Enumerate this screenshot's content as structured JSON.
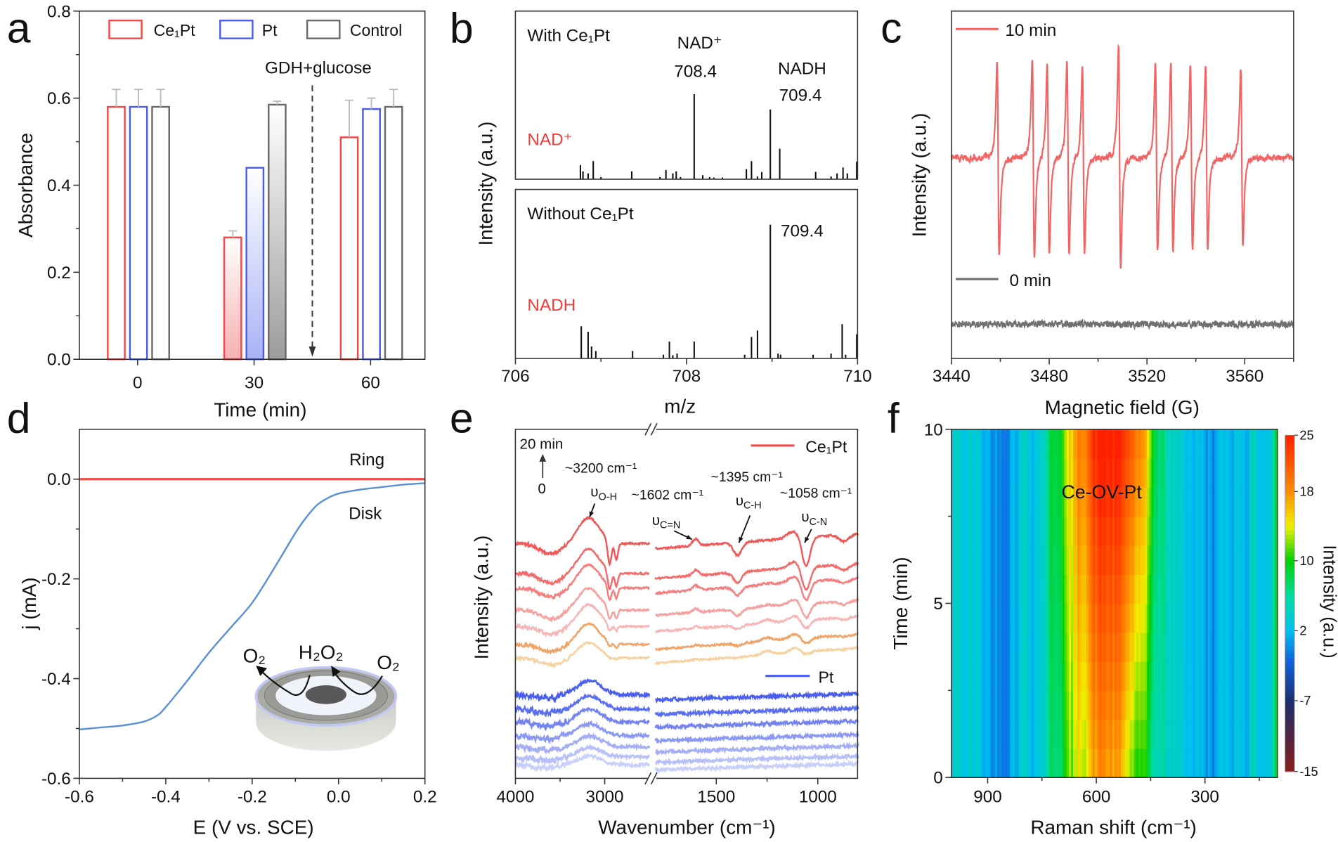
{
  "panel_labels": [
    "a",
    "b",
    "c",
    "d",
    "e",
    "f"
  ],
  "chart_data": [
    {
      "panel": "a",
      "type": "bar",
      "xlabel": "Time (min)",
      "ylabel": "Absorbance",
      "categories": [
        "0",
        "30",
        "60"
      ],
      "category_values": [
        0,
        30,
        60
      ],
      "xlim": [
        -15,
        74
      ],
      "ylim": [
        0,
        0.8
      ],
      "yticks": [
        "0.0",
        "0.2",
        "0.4",
        "0.6",
        "0.8"
      ],
      "series": [
        {
          "name": "Ce₁Pt",
          "color": "#f24848",
          "fill_color": "#f5b0b0",
          "values": [
            0.58,
            0.28,
            0.51
          ],
          "errors": [
            0.04,
            0.015,
            0.085
          ]
        },
        {
          "name": "Pt",
          "color": "#4a5cf0",
          "fill_color": "#a9b3f7",
          "values": [
            0.58,
            0.44,
            0.575
          ],
          "errors": [
            0.04,
            0.0,
            0.025
          ]
        },
        {
          "name": "Control",
          "color": "#6a6a6a",
          "fill_color": "#9c9c9c",
          "values": [
            0.58,
            0.585,
            0.58
          ],
          "errors": [
            0.04,
            0.008,
            0.04
          ]
        }
      ],
      "annotation": {
        "text": "GDH+glucose",
        "x": 45
      },
      "legend_position": "top",
      "error_color": "#bdbdbd"
    },
    {
      "panel": "b",
      "type": "bar",
      "xlabel": "m/z",
      "ylabel": "Intensity (a.u.)",
      "xlim": [
        706,
        710
      ],
      "xticks": [
        "706",
        "708",
        "710"
      ],
      "subplots": [
        {
          "title": "With Ce₁Pt",
          "sample_label": "NAD⁺",
          "annotations": [
            "NAD⁺",
            "708.4",
            "NADH",
            "709.4"
          ],
          "peaks": [
            [
              706.76,
              0.084
            ],
            [
              706.79,
              0.047
            ],
            [
              706.85,
              0.035
            ],
            [
              706.91,
              0.108
            ],
            [
              707.0,
              0.013
            ],
            [
              707.36,
              0.047
            ],
            [
              707.69,
              0.013
            ],
            [
              707.76,
              0.055
            ],
            [
              707.84,
              0.035
            ],
            [
              707.88,
              0.047
            ],
            [
              707.93,
              0.013
            ],
            [
              708.09,
              0.506
            ],
            [
              708.19,
              0.024
            ],
            [
              708.27,
              0.013
            ],
            [
              708.32,
              0.01
            ],
            [
              708.42,
              0.01
            ],
            [
              708.7,
              0.06
            ],
            [
              708.76,
              0.108
            ],
            [
              708.83,
              0.016
            ],
            [
              708.88,
              0.043
            ],
            [
              708.98,
              0.415
            ],
            [
              709.09,
              0.182
            ],
            [
              709.51,
              0.044
            ],
            [
              709.69,
              0.016
            ],
            [
              709.76,
              0.035
            ],
            [
              709.83,
              0.07
            ],
            [
              709.88,
              0.035
            ],
            [
              709.99,
              0.104
            ]
          ]
        },
        {
          "title": "Without Ce₁Pt",
          "sample_label": "NADH",
          "annotations": [
            "709.4"
          ],
          "peaks": [
            [
              706.77,
              0.19
            ],
            [
              706.85,
              0.158
            ],
            [
              706.89,
              0.071
            ],
            [
              706.94,
              0.044
            ],
            [
              707.37,
              0.044
            ],
            [
              707.73,
              0.022
            ],
            [
              707.8,
              0.1
            ],
            [
              707.84,
              0.019
            ],
            [
              707.89,
              0.029
            ],
            [
              708.09,
              0.1
            ],
            [
              708.68,
              0.022
            ],
            [
              708.76,
              0.127
            ],
            [
              708.83,
              0.165
            ],
            [
              708.98,
              0.792
            ],
            [
              709.07,
              0.029
            ],
            [
              709.1,
              0.022
            ],
            [
              709.48,
              0.022
            ],
            [
              709.69,
              0.029
            ],
            [
              709.82,
              0.203
            ],
            [
              709.86,
              0.022
            ],
            [
              709.99,
              0.143
            ]
          ]
        }
      ],
      "label_color": "#f03c3c"
    },
    {
      "panel": "c",
      "type": "line",
      "xlabel": "Magnetic field (G)",
      "ylabel": "Intensity (a.u.)",
      "xlim": [
        3440,
        3580
      ],
      "xticks": [
        "3440",
        "3480",
        "3520",
        "3560"
      ],
      "series": [
        {
          "name": "10 min",
          "color": "#f26464",
          "line_centers": [
            3459.1,
            3473.5,
            3479.6,
            3487.7,
            3494.0,
            3508.8,
            3523.9,
            3530.2,
            3538.2,
            3544.4,
            3558.8
          ],
          "amplitudes": [
            1,
            1.02,
            0.96,
            0.96,
            0.96,
            1.15,
            0.96,
            0.96,
            0.95,
            0.93,
            0.9
          ]
        },
        {
          "name": "0 min",
          "color": "#707070",
          "line_centers": [],
          "amplitudes": []
        }
      ],
      "legend_position": "left"
    },
    {
      "panel": "d",
      "type": "line",
      "xlabel": "E (V vs. SCE)",
      "ylabel": "j (mA)",
      "xlim": [
        -0.6,
        0.2
      ],
      "ylim": [
        -0.6,
        0.1
      ],
      "xticks": [
        "-0.6",
        "-0.4",
        "-0.2",
        "0.0",
        "0.2"
      ],
      "yticks": [
        "0.0",
        "-0.2",
        "-0.4",
        "-0.6"
      ],
      "series": [
        {
          "name": "Ring",
          "color": "#f04848",
          "points": [
            [
              -0.6,
              0.0
            ],
            [
              0.2,
              0.0
            ]
          ]
        },
        {
          "name": "Disk",
          "color": "#5b8fd6",
          "points": [
            [
              -0.6,
              -0.502
            ],
            [
              -0.55,
              -0.498
            ],
            [
              -0.5,
              -0.494
            ],
            [
              -0.45,
              -0.486
            ],
            [
              -0.42,
              -0.474
            ],
            [
              -0.4,
              -0.457
            ],
            [
              -0.35,
              -0.404
            ],
            [
              -0.3,
              -0.348
            ],
            [
              -0.25,
              -0.298
            ],
            [
              -0.2,
              -0.248
            ],
            [
              -0.15,
              -0.18
            ],
            [
              -0.1,
              -0.108
            ],
            [
              -0.075,
              -0.077
            ],
            [
              -0.05,
              -0.052
            ],
            [
              -0.025,
              -0.038
            ],
            [
              0.0,
              -0.029
            ],
            [
              0.05,
              -0.021
            ],
            [
              0.1,
              -0.016
            ],
            [
              0.15,
              -0.011
            ],
            [
              0.2,
              -0.008
            ]
          ]
        }
      ],
      "inset_labels": {
        "left": "O₂",
        "center": "H₂O₂",
        "right": "O₂"
      }
    },
    {
      "panel": "e",
      "type": "line",
      "xlabel": "Wavenumber (cm⁻¹)",
      "ylabel": "Intensity (a.u.)",
      "x_segments": [
        [
          4000,
          2500
        ],
        [
          1800,
          800
        ]
      ],
      "xticks": [
        "4000",
        "3000",
        "1500",
        "1000"
      ],
      "time_arrow": {
        "top": "20 min",
        "bottom": "0"
      },
      "annotations": [
        {
          "position": "~3200 cm⁻¹",
          "mode": "υ",
          "sub": "O-H"
        },
        {
          "position": "~1602 cm⁻¹",
          "mode": "υ",
          "sub": "C=N"
        },
        {
          "position": "~1395 cm⁻¹",
          "mode": "υ",
          "sub": "C-H"
        },
        {
          "position": "~1058 cm⁻¹",
          "mode": "υ",
          "sub": "C-N"
        }
      ],
      "groups": [
        {
          "name": "Ce₁Pt",
          "color": "#f24848",
          "series": [
            {
              "color": "#f05858",
              "broad": 1.0,
              "sharp": 1.0
            },
            {
              "color": "#f26a6a",
              "broad": 0.95,
              "sharp": 0.8
            },
            {
              "color": "#f47e7e",
              "broad": 0.9,
              "sharp": 0.65
            },
            {
              "color": "#f6a0a0",
              "broad": 0.85,
              "sharp": 0.5
            },
            {
              "color": "#f7b5b5",
              "broad": 0.85,
              "sharp": 0.3
            },
            {
              "color": "#f0a468",
              "broad": 0.8,
              "sharp": 0.2
            },
            {
              "color": "#f6d2a2",
              "broad": 0.6,
              "sharp": 0.1
            }
          ]
        },
        {
          "name": "Pt",
          "color": "#4a5cf0",
          "series": [
            {
              "color": "#4a5ff0",
              "broad": 0.6,
              "sharp": 0
            },
            {
              "color": "#5a6ef2",
              "broad": 0.55,
              "sharp": 0
            },
            {
              "color": "#7383f2",
              "broad": 0.55,
              "sharp": 0
            },
            {
              "color": "#8c99f4",
              "broad": 0.5,
              "sharp": 0
            },
            {
              "color": "#a3aef6",
              "broad": 0.45,
              "sharp": 0
            },
            {
              "color": "#b6bff8",
              "broad": 0.4,
              "sharp": 0
            },
            {
              "color": "#c8cffa",
              "broad": 0.35,
              "sharp": 0
            }
          ]
        }
      ]
    },
    {
      "panel": "f",
      "type": "heatmap",
      "xlabel": "Raman shift (cm⁻¹)",
      "ylabel": "Time (min)",
      "xlim": [
        1000,
        100
      ],
      "ylim": [
        0,
        10
      ],
      "xticks": [
        "900",
        "600",
        "300"
      ],
      "yticks": [
        "0",
        "5",
        "10"
      ],
      "annotation": "Ce-OV-Pt",
      "peak": {
        "center": 575,
        "width": 75,
        "intensity_start": 14,
        "intensity_end": 22
      },
      "colorbar": {
        "label": "Intensity (a.u.)",
        "ticks": [
          "25",
          "18",
          "10",
          "2",
          "-7",
          "-15"
        ],
        "range": [
          -15,
          25
        ],
        "stops": [
          [
            -15,
            "#8a1c1c"
          ],
          [
            -7,
            "#1a2e6e"
          ],
          [
            -2,
            "#1060e0"
          ],
          [
            2,
            "#00c0f0"
          ],
          [
            6,
            "#00dca0"
          ],
          [
            10,
            "#00d000"
          ],
          [
            14,
            "#f0f000"
          ],
          [
            18,
            "#ff8c00"
          ],
          [
            25,
            "#ff2000"
          ]
        ]
      }
    }
  ]
}
